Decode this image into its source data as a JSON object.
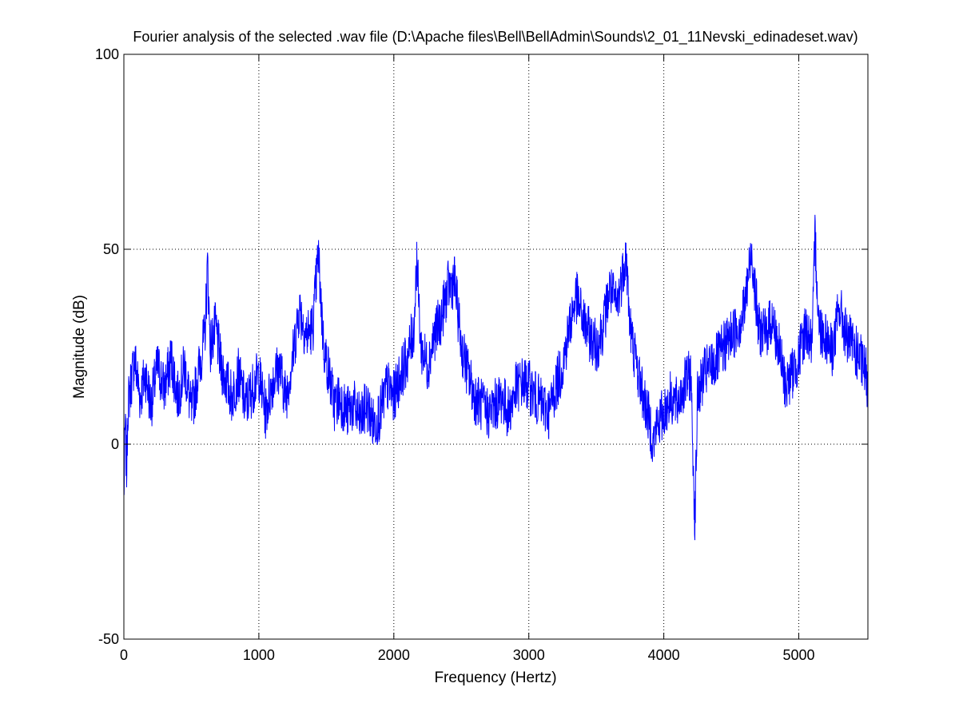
{
  "chart_data": {
    "type": "line",
    "title": "Fourier analysis of the selected .wav file (D:\\Apache files\\Bell\\BellAdmin\\Sounds\\2_01_11Nevski_edinadeset.wav)",
    "xlabel": "Frequency (Hertz)",
    "ylabel": "Magnitude (dB)",
    "xlim": [
      0,
      5512
    ],
    "ylim": [
      -50,
      100
    ],
    "xticks": [
      0,
      1000,
      2000,
      3000,
      4000,
      5000
    ],
    "yticks": [
      -50,
      0,
      50,
      100
    ],
    "grid": true,
    "line_color": "#0000ff",
    "series": [
      {
        "x": [
          0,
          10,
          20,
          30,
          50,
          80,
          120,
          160,
          200,
          250,
          300,
          350,
          400,
          450,
          500,
          550,
          600,
          620,
          640,
          680,
          720,
          760,
          800,
          850,
          900,
          950,
          1000,
          1050,
          1100,
          1150,
          1200,
          1250,
          1300,
          1350,
          1400,
          1440,
          1480,
          1520,
          1560,
          1600,
          1650,
          1700,
          1750,
          1800,
          1850,
          1900,
          1950,
          2000,
          2050,
          2100,
          2150,
          2170,
          2200,
          2250,
          2300,
          2350,
          2400,
          2450,
          2500,
          2550,
          2600,
          2650,
          2700,
          2750,
          2800,
          2850,
          2900,
          2950,
          3000,
          3050,
          3100,
          3150,
          3200,
          3250,
          3300,
          3350,
          3400,
          3450,
          3500,
          3550,
          3600,
          3650,
          3700,
          3720,
          3750,
          3800,
          3850,
          3900,
          3920,
          3950,
          4000,
          4050,
          4100,
          4150,
          4200,
          4230,
          4250,
          4300,
          4350,
          4400,
          4450,
          4500,
          4550,
          4600,
          4650,
          4700,
          4750,
          4800,
          4850,
          4900,
          4950,
          5000,
          5050,
          5100,
          5120,
          5150,
          5200,
          5250,
          5300,
          5350,
          5400,
          5450,
          5500,
          5512
        ],
        "y": [
          -14,
          5,
          -7,
          10,
          15,
          22,
          12,
          18,
          10,
          20,
          14,
          22,
          12,
          20,
          8,
          18,
          28,
          46,
          25,
          30,
          20,
          16,
          12,
          18,
          10,
          14,
          18,
          8,
          16,
          20,
          12,
          22,
          35,
          28,
          30,
          49,
          25,
          18,
          10,
          12,
          8,
          10,
          6,
          10,
          5,
          8,
          15,
          12,
          18,
          22,
          30,
          48,
          25,
          20,
          28,
          32,
          40,
          42,
          25,
          18,
          12,
          10,
          8,
          10,
          12,
          8,
          14,
          16,
          15,
          12,
          10,
          8,
          15,
          20,
          30,
          38,
          32,
          28,
          25,
          30,
          40,
          35,
          45,
          49,
          30,
          20,
          12,
          5,
          0,
          5,
          8,
          12,
          10,
          15,
          18,
          -20,
          12,
          18,
          20,
          22,
          25,
          28,
          30,
          35,
          50,
          30,
          28,
          32,
          25,
          15,
          18,
          22,
          30,
          25,
          54,
          30,
          28,
          24,
          35,
          28,
          25,
          22,
          18,
          15
        ]
      }
    ]
  }
}
